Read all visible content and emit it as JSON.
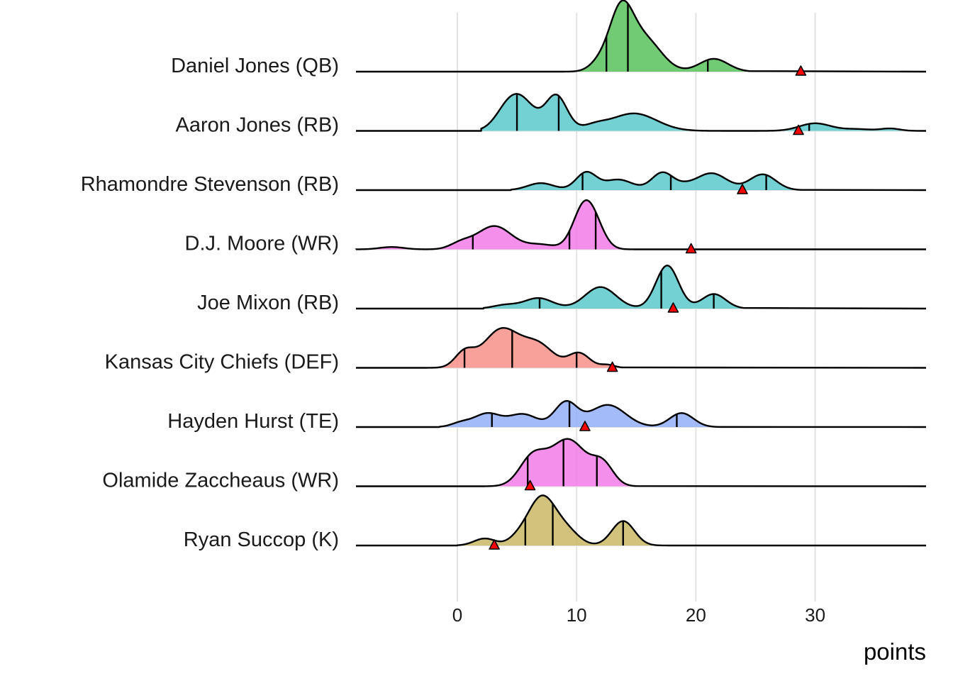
{
  "chart_data": {
    "type": "ridgeline",
    "xlabel": "points",
    "ylabel": "",
    "xlim": [
      -8.5,
      39.3
    ],
    "x_ticks": [
      0,
      10,
      20,
      30
    ],
    "x_tick_labels": [
      "0",
      "10",
      "20",
      "30"
    ],
    "grid": true,
    "legend": "none",
    "marker_color": "#ff0000",
    "series": [
      {
        "name": "Daniel Jones (QB)",
        "color": "#58c25d",
        "peaks": [
          [
            13.7,
            1.0,
            1.0
          ],
          [
            15.7,
            0.55,
            1.4
          ],
          [
            21.5,
            0.22,
            1.2
          ],
          [
            11.8,
            0.12,
            0.8
          ]
        ],
        "support": [
          9.0,
          24.5
        ],
        "quantiles": [
          12.5,
          14.3,
          21.0
        ],
        "actual": 28.8
      },
      {
        "name": "Aaron Jones (RB)",
        "color": "#5ac9cc",
        "peaks": [
          [
            5.3,
            0.53,
            1.2
          ],
          [
            8.3,
            0.6,
            0.9
          ],
          [
            4.0,
            0.2,
            1.0
          ],
          [
            14.8,
            0.3,
            1.9
          ],
          [
            11.5,
            0.08,
            1.0
          ],
          [
            30.0,
            0.13,
            1.3
          ],
          [
            36.3,
            0.04,
            0.8
          ],
          [
            33.5,
            0.03,
            1.2
          ]
        ],
        "support": [
          2.0,
          38.5
        ],
        "quantiles": [
          5.0,
          8.5,
          29.5
        ],
        "actual": 28.6
      },
      {
        "name": "Rhamondre Stevenson (RB)",
        "color": "#5ac9cc",
        "peaks": [
          [
            7.0,
            0.12,
            1.1
          ],
          [
            10.8,
            0.3,
            0.85
          ],
          [
            13.5,
            0.18,
            1.2
          ],
          [
            17.2,
            0.3,
            0.9
          ],
          [
            21.3,
            0.29,
            1.3
          ],
          [
            25.6,
            0.27,
            1.1
          ],
          [
            19.0,
            0.05,
            0.8
          ]
        ],
        "support": [
          4.5,
          28.8
        ],
        "quantiles": [
          10.5,
          17.9,
          25.9
        ],
        "actual": 23.9
      },
      {
        "name": "D.J. Moore (WR)",
        "color": "#f27de8",
        "peaks": [
          [
            -5.5,
            0.04,
            1.0
          ],
          [
            3.1,
            0.4,
            1.45
          ],
          [
            0.3,
            0.1,
            0.9
          ],
          [
            10.7,
            0.78,
            0.95
          ],
          [
            11.8,
            0.15,
            0.8
          ],
          [
            7.0,
            0.08,
            1.2
          ]
        ],
        "support": [
          -8.5,
          16.0
        ],
        "quantiles": [
          1.3,
          9.4,
          11.6
        ],
        "actual": 19.6
      },
      {
        "name": "Joe Mixon (RB)",
        "color": "#5ac9cc",
        "peaks": [
          [
            6.8,
            0.18,
            1.2
          ],
          [
            12.0,
            0.37,
            1.3
          ],
          [
            17.6,
            0.74,
            0.95
          ],
          [
            21.5,
            0.25,
            1.0
          ],
          [
            4.0,
            0.06,
            1.0
          ]
        ],
        "support": [
          2.2,
          24.0
        ],
        "quantiles": [
          6.9,
          17.1,
          21.5
        ],
        "actual": 18.1
      },
      {
        "name": "Kansas City Chiefs (DEF)",
        "color": "#f7918a",
        "peaks": [
          [
            0.6,
            0.25,
            0.8
          ],
          [
            3.7,
            0.66,
            1.5
          ],
          [
            6.8,
            0.38,
            1.3
          ],
          [
            10.2,
            0.25,
            0.9
          ],
          [
            12.6,
            0.05,
            0.6
          ]
        ],
        "support": [
          -2.5,
          13.8
        ],
        "quantiles": [
          0.6,
          4.6,
          10.0
        ],
        "actual": 13.0
      },
      {
        "name": "Hayden Hurst (TE)",
        "color": "#93aff7",
        "peaks": [
          [
            2.5,
            0.23,
            1.1
          ],
          [
            5.5,
            0.22,
            1.2
          ],
          [
            9.1,
            0.42,
            0.95
          ],
          [
            12.6,
            0.38,
            1.5
          ],
          [
            18.8,
            0.24,
            1.0
          ],
          [
            0.3,
            0.07,
            0.8
          ]
        ],
        "support": [
          -1.5,
          22.0
        ],
        "quantiles": [
          2.9,
          9.4,
          18.4
        ],
        "actual": 10.7
      },
      {
        "name": "Olamide Zaccheaus (WR)",
        "color": "#f27de8",
        "peaks": [
          [
            6.3,
            0.48,
            1.1
          ],
          [
            9.3,
            0.8,
            1.5
          ],
          [
            12.2,
            0.35,
            0.9
          ]
        ],
        "support": [
          2.3,
          15.0
        ],
        "quantiles": [
          5.9,
          8.9,
          11.7
        ],
        "actual": 6.1
      },
      {
        "name": "Ryan Succop (K)",
        "color": "#c9b865",
        "peaks": [
          [
            2.3,
            0.12,
            0.9
          ],
          [
            7.1,
            0.84,
            1.2
          ],
          [
            9.3,
            0.2,
            1.0
          ],
          [
            13.9,
            0.42,
            0.95
          ],
          [
            5.0,
            0.08,
            0.8
          ]
        ],
        "support": [
          0.0,
          18.0
        ],
        "quantiles": [
          5.7,
          8.0,
          13.9
        ],
        "actual": 3.1
      }
    ]
  }
}
